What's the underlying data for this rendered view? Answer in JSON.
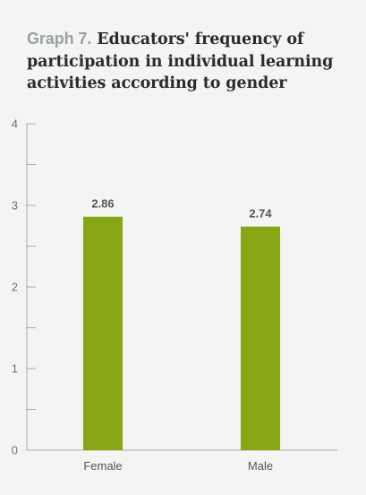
{
  "title": {
    "prefix": "Graph 7.",
    "text": "Educators' frequency of participation in individual learning activities according to gender"
  },
  "colors": {
    "bar": "#87a613",
    "axis": "#a9a9a9",
    "background": "#f4f5f3"
  },
  "chart_data": {
    "type": "bar",
    "title": "Graph 7. Educators' frequency of participation in individual learning activities according to gender",
    "categories": [
      "Female",
      "Male"
    ],
    "values": [
      2.86,
      2.74
    ],
    "value_labels": [
      "2.86",
      "2.74"
    ],
    "y_ticks": [
      "0",
      "1",
      "2",
      "3",
      "4"
    ],
    "ylim": [
      0,
      4
    ],
    "xlabel": "",
    "ylabel": "",
    "grid": false,
    "minor_ticks": true
  }
}
